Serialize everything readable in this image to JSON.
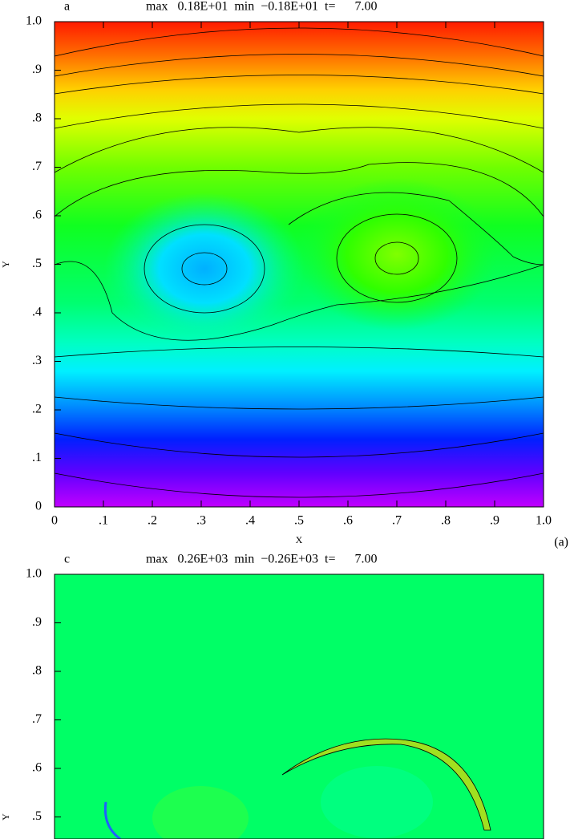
{
  "chart_data": [
    {
      "type": "contour",
      "panel": "a",
      "title": "max   0.18E+01  min  −0.18E+01  t=      7.00",
      "xlabel": "X",
      "ylabel": "Y",
      "panel_label": "(a)",
      "xlim": [
        0,
        1
      ],
      "ylim": [
        0,
        1
      ],
      "xticks": [
        0,
        {
          "value": 0.1,
          "label": ".1"
        },
        {
          "value": 0.2,
          "label": ".2"
        },
        {
          "value": 0.3,
          "label": ".3"
        },
        {
          "value": 0.4,
          "label": ".4"
        },
        {
          "value": 0.5,
          "label": ".5"
        },
        {
          "value": 0.6,
          "label": ".6"
        },
        {
          "value": 0.7,
          "label": ".7"
        },
        {
          "value": 0.8,
          "label": ".8"
        },
        {
          "value": 0.9,
          "label": ".9"
        },
        {
          "value": 1,
          "label": "1.0"
        }
      ],
      "yticks": [
        0,
        {
          "value": 0.1,
          "label": ".1"
        },
        {
          "value": 0.2,
          "label": ".2"
        },
        {
          "value": 0.3,
          "label": ".3"
        },
        {
          "value": 0.4,
          "label": ".4"
        },
        {
          "value": 0.5,
          "label": ".5"
        },
        {
          "value": 0.6,
          "label": ".6"
        },
        {
          "value": 0.7,
          "label": ".7"
        },
        {
          "value": 0.8,
          "label": ".8"
        },
        {
          "value": 0.9,
          "label": ".9"
        },
        {
          "value": 1,
          "label": "1.0"
        }
      ]
    },
    {
      "type": "contour",
      "panel": "c",
      "title": "max   0.26E+03  min  −0.26E+03  t=      7.00",
      "ylabel": "Y",
      "xlim": [
        0,
        1
      ],
      "ylim": [
        0,
        1
      ],
      "yticks": [
        {
          "value": 0.5,
          "label": ".5"
        },
        {
          "value": 0.6,
          "label": ".6"
        },
        {
          "value": 0.7,
          "label": ".7"
        },
        {
          "value": 0.8,
          "label": ".8"
        },
        {
          "value": 0.9,
          "label": ".9"
        },
        {
          "value": 1,
          "label": "1.0"
        }
      ]
    }
  ]
}
